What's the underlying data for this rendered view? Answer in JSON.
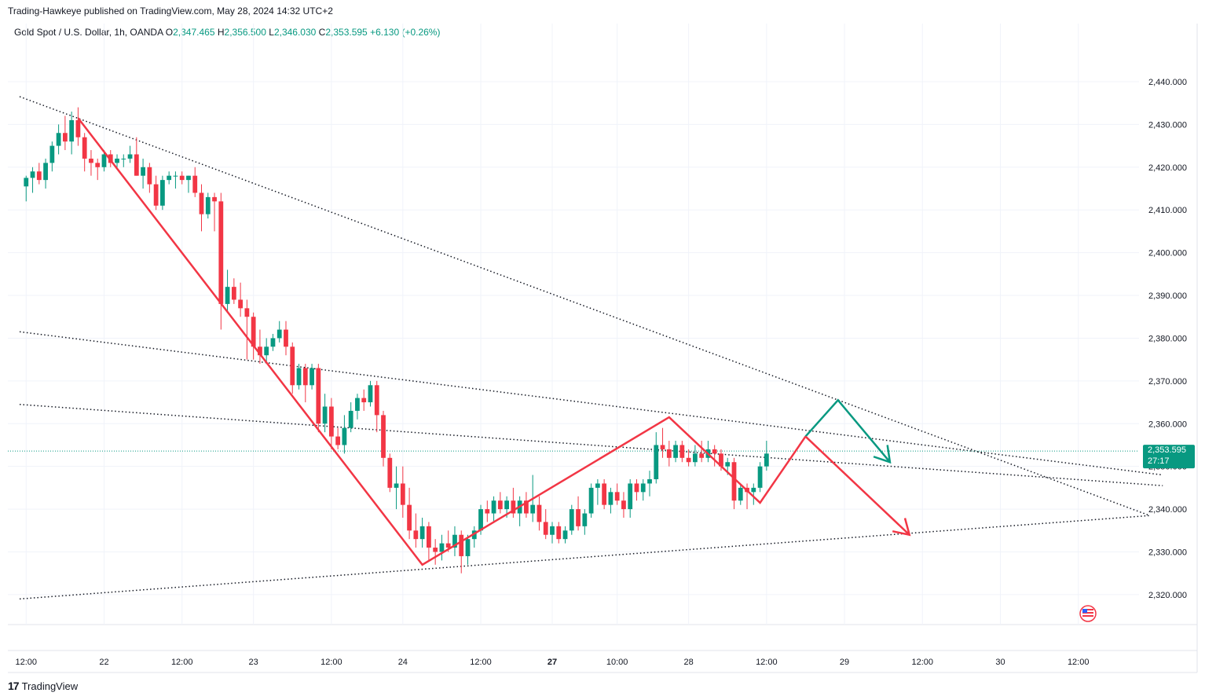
{
  "header": {
    "published_by": "Trading-Hawkeye published on TradingView.com, May 28, 2024 14:32 UTC+2"
  },
  "legend": {
    "symbol": "Gold Spot / U.S. Dollar, 1h, OANDA",
    "open_label": "O",
    "open": "2,347.465",
    "high_label": "H",
    "high": "2,356.500",
    "low_label": "L",
    "low": "2,346.030",
    "close_label": "C",
    "close": "2,353.595",
    "change": "+6.130 (+0.26%)"
  },
  "last_price": {
    "value": "2,353.595",
    "countdown": "27:17",
    "color": "#089981"
  },
  "footer": {
    "brand": "TradingView"
  },
  "colors": {
    "up": "#089981",
    "down": "#f23645",
    "zigzag": "#f23645",
    "projection_up": "#089981",
    "projection_down": "#f23645"
  },
  "chart_data": {
    "type": "candlestick",
    "y_axis": {
      "ticks": [
        "2,440.000",
        "2,430.000",
        "2,420.000",
        "2,410.000",
        "2,400.000",
        "2,390.000",
        "2,380.000",
        "2,370.000",
        "2,360.000",
        "2,350.000",
        "2,340.000",
        "2,330.000",
        "2,320.000"
      ],
      "tick_values": [
        2440,
        2430,
        2420,
        2410,
        2400,
        2390,
        2380,
        2370,
        2360,
        2350,
        2340,
        2330,
        2320
      ],
      "range": [
        2313,
        2449
      ]
    },
    "x_axis": {
      "ticks": [
        {
          "label": "12:00",
          "bar": 0
        },
        {
          "label": "22",
          "bar": 12
        },
        {
          "label": "12:00",
          "bar": 24
        },
        {
          "label": "23",
          "bar": 35
        },
        {
          "label": "12:00",
          "bar": 47
        },
        {
          "label": "24",
          "bar": 58
        },
        {
          "label": "12:00",
          "bar": 70
        },
        {
          "label": "27",
          "bar": 81,
          "bold": true
        },
        {
          "label": "10:00",
          "bar": 91
        },
        {
          "label": "28",
          "bar": 102
        },
        {
          "label": "12:00",
          "bar": 114
        },
        {
          "label": "29",
          "bar": 126
        },
        {
          "label": "12:00",
          "bar": 138
        },
        {
          "label": "30",
          "bar": 150
        },
        {
          "label": "12:00",
          "bar": 162
        }
      ],
      "bar_range": [
        -1,
        178
      ]
    },
    "candles": [
      [
        2415.5,
        2418,
        2412,
        2417.5
      ],
      [
        2417.5,
        2420,
        2414,
        2419
      ],
      [
        2419,
        2421,
        2416,
        2417
      ],
      [
        2417,
        2422,
        2415,
        2421
      ],
      [
        2421,
        2426,
        2419,
        2425
      ],
      [
        2425,
        2430,
        2423,
        2428
      ],
      [
        2428,
        2432,
        2424,
        2426
      ],
      [
        2426,
        2433,
        2423,
        2431
      ],
      [
        2431,
        2434,
        2425,
        2427
      ],
      [
        2427,
        2428,
        2419,
        2422
      ],
      [
        2422,
        2424,
        2418,
        2421
      ],
      [
        2421,
        2422,
        2417,
        2420
      ],
      [
        2420,
        2424,
        2419,
        2423
      ],
      [
        2423,
        2424,
        2420,
        2421
      ],
      [
        2421,
        2423,
        2420,
        2422
      ],
      [
        2422,
        2423,
        2420,
        2422
      ],
      [
        2422,
        2425,
        2421,
        2423
      ],
      [
        2423,
        2427,
        2418,
        2418
      ],
      [
        2418,
        2422,
        2415,
        2420
      ],
      [
        2420,
        2421,
        2414,
        2416
      ],
      [
        2416,
        2418,
        2410,
        2411
      ],
      [
        2411,
        2418,
        2410,
        2417
      ],
      [
        2417,
        2419,
        2416,
        2418
      ],
      [
        2418,
        2419,
        2415,
        2418
      ],
      [
        2418,
        2419,
        2416,
        2417
      ],
      [
        2417,
        2418,
        2414,
        2418
      ],
      [
        2418,
        2420,
        2413,
        2414
      ],
      [
        2414,
        2416,
        2405,
        2409
      ],
      [
        2409,
        2414,
        2408,
        2413
      ],
      [
        2413,
        2414,
        2405,
        2412
      ],
      [
        2412,
        2414,
        2382,
        2388
      ],
      [
        2388,
        2396,
        2386,
        2392
      ],
      [
        2392,
        2394,
        2388,
        2389
      ],
      [
        2389,
        2393,
        2385,
        2387
      ],
      [
        2387,
        2389,
        2375,
        2385
      ],
      [
        2385,
        2386,
        2375,
        2378
      ],
      [
        2378,
        2382,
        2374,
        2376
      ],
      [
        2376,
        2380,
        2374,
        2378
      ],
      [
        2378,
        2381,
        2377,
        2380
      ],
      [
        2380,
        2384,
        2379,
        2382
      ],
      [
        2382,
        2384,
        2376,
        2378
      ],
      [
        2378,
        2379,
        2367,
        2369
      ],
      [
        2369,
        2374,
        2368,
        2373
      ],
      [
        2373,
        2374,
        2365,
        2369
      ],
      [
        2369,
        2374,
        2368,
        2373
      ],
      [
        2373,
        2374,
        2358,
        2360
      ],
      [
        2360,
        2367,
        2358,
        2364
      ],
      [
        2364,
        2366,
        2354,
        2357
      ],
      [
        2357,
        2359,
        2354,
        2355
      ],
      [
        2355,
        2362,
        2353,
        2359
      ],
      [
        2359,
        2365,
        2358,
        2363
      ],
      [
        2363,
        2367,
        2361,
        2366
      ],
      [
        2366,
        2368,
        2363,
        2365
      ],
      [
        2365,
        2370,
        2364,
        2369
      ],
      [
        2369,
        2370,
        2358,
        2362
      ],
      [
        2362,
        2363,
        2350,
        2352
      ],
      [
        2352,
        2353,
        2344,
        2345
      ],
      [
        2345,
        2350,
        2340,
        2346
      ],
      [
        2346,
        2350,
        2338,
        2341
      ],
      [
        2341,
        2345,
        2333,
        2335
      ],
      [
        2335,
        2339,
        2331,
        2333
      ],
      [
        2333,
        2338,
        2331,
        2336
      ],
      [
        2336,
        2337,
        2328,
        2331
      ],
      [
        2331,
        2333,
        2327,
        2330
      ],
      [
        2330,
        2334,
        2328,
        2332
      ],
      [
        2332,
        2335,
        2330,
        2331
      ],
      [
        2331,
        2336,
        2329,
        2334
      ],
      [
        2334,
        2335,
        2325,
        2329
      ],
      [
        2329,
        2334,
        2327,
        2333
      ],
      [
        2333,
        2336,
        2331,
        2335
      ],
      [
        2335,
        2341,
        2334,
        2340
      ],
      [
        2340,
        2342,
        2337,
        2339
      ],
      [
        2339,
        2343,
        2337,
        2342
      ],
      [
        2342,
        2344,
        2339,
        2340
      ],
      [
        2340,
        2343,
        2338,
        2342
      ],
      [
        2342,
        2345,
        2338,
        2339
      ],
      [
        2339,
        2343,
        2336,
        2342
      ],
      [
        2342,
        2344,
        2338,
        2339
      ],
      [
        2339,
        2348,
        2337,
        2341
      ],
      [
        2341,
        2343,
        2335,
        2337
      ],
      [
        2337,
        2340,
        2333,
        2334
      ],
      [
        2334,
        2337,
        2332,
        2336
      ],
      [
        2336,
        2337,
        2332,
        2333
      ],
      [
        2333,
        2336,
        2332,
        2335
      ],
      [
        2335,
        2341,
        2334,
        2340
      ],
      [
        2340,
        2343,
        2335,
        2336
      ],
      [
        2336,
        2340,
        2334,
        2339
      ],
      [
        2339,
        2346,
        2338,
        2345
      ],
      [
        2345,
        2347,
        2341,
        2346
      ],
      [
        2346,
        2347,
        2340,
        2341
      ],
      [
        2341,
        2345,
        2339,
        2344
      ],
      [
        2344,
        2346,
        2341,
        2342
      ],
      [
        2342,
        2344,
        2338,
        2340
      ],
      [
        2340,
        2347,
        2338,
        2346
      ],
      [
        2346,
        2347,
        2342,
        2344
      ],
      [
        2344,
        2347,
        2342,
        2346
      ],
      [
        2346,
        2349,
        2343,
        2347
      ],
      [
        2347,
        2358,
        2346,
        2355
      ],
      [
        2355,
        2359,
        2352,
        2354
      ],
      [
        2354,
        2356,
        2350,
        2352
      ],
      [
        2352,
        2356,
        2351,
        2355
      ],
      [
        2355,
        2356,
        2351,
        2352
      ],
      [
        2352,
        2354,
        2350,
        2351
      ],
      [
        2351,
        2355,
        2350,
        2353
      ],
      [
        2353,
        2356,
        2351,
        2352
      ],
      [
        2352,
        2356,
        2351,
        2354
      ],
      [
        2354,
        2355,
        2350,
        2353
      ],
      [
        2353,
        2354,
        2349,
        2350
      ],
      [
        2350,
        2352,
        2348,
        2351
      ],
      [
        2351,
        2352,
        2340,
        2342
      ],
      [
        2342,
        2346,
        2341,
        2345
      ],
      [
        2345,
        2346,
        2340,
        2344
      ],
      [
        2344,
        2346,
        2341,
        2345
      ],
      [
        2345,
        2351,
        2344,
        2350
      ],
      [
        2350,
        2356,
        2349,
        2353
      ]
    ],
    "zigzag": [
      [
        8,
        2431.5
      ],
      [
        61,
        2327
      ],
      [
        99,
        2361.5
      ],
      [
        113,
        2341.5
      ],
      [
        120,
        2357
      ]
    ],
    "projection_up": [
      [
        120,
        2357
      ],
      [
        125,
        2365.5
      ],
      [
        133,
        2351
      ]
    ],
    "projection_down": [
      [
        120,
        2357
      ],
      [
        136,
        2334
      ]
    ],
    "trendlines": [
      {
        "from": [
          -1,
          2436.5
        ],
        "to": [
          173,
          2338.5
        ]
      },
      {
        "from": [
          -1,
          2381.5
        ],
        "to": [
          175,
          2348
        ]
      },
      {
        "from": [
          -1,
          2364.5
        ],
        "to": [
          175,
          2345.5
        ]
      },
      {
        "from": [
          -1,
          2319
        ],
        "to": [
          173,
          2338.5
        ]
      }
    ],
    "last_price_line": 2353.595
  }
}
